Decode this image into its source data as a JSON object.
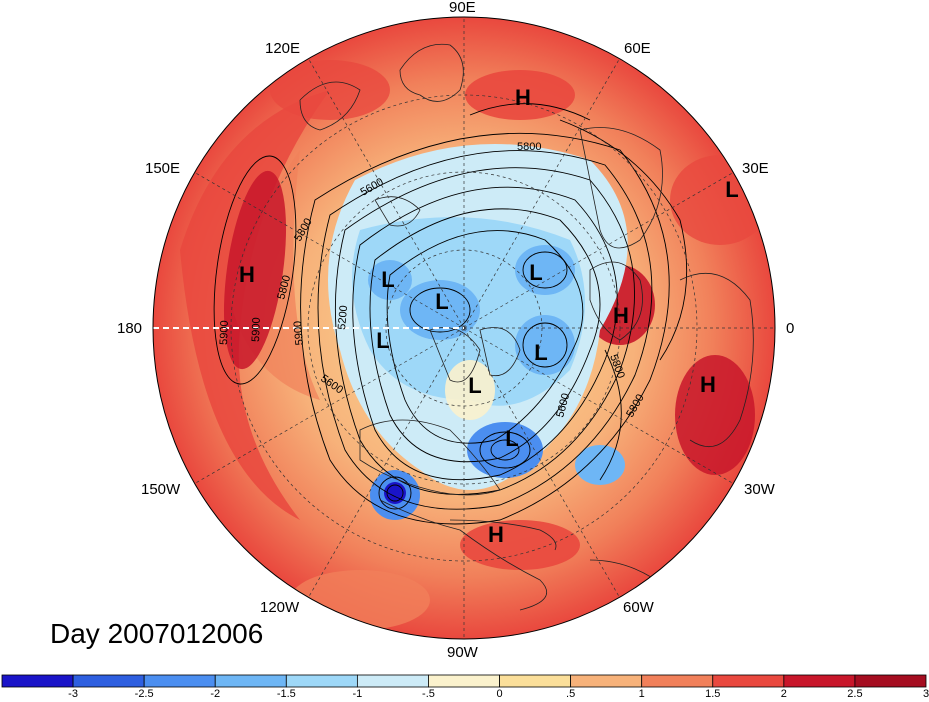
{
  "longitude_labels": [
    {
      "text": "90E"
    },
    {
      "text": "60E"
    },
    {
      "text": "30E"
    },
    {
      "text": "0"
    },
    {
      "text": "30W"
    },
    {
      "text": "60W"
    },
    {
      "text": "90W"
    },
    {
      "text": "120W"
    },
    {
      "text": "150W"
    },
    {
      "text": "180"
    },
    {
      "text": "150E"
    },
    {
      "text": "120E"
    }
  ],
  "day_label": "Day 2007012006",
  "contour_labels": [
    "5800",
    "5600",
    "5800",
    "5800",
    "5900",
    "5900",
    "5900",
    "5600",
    "5200",
    "5600",
    "5800",
    "5800"
  ],
  "systems": [
    "H",
    "H",
    "L",
    "L",
    "L",
    "L",
    "L",
    "L",
    "L",
    "H",
    "H",
    "H",
    "L"
  ],
  "colorbar": {
    "colors": [
      "#1a14c8",
      "#2e5fe0",
      "#4b8ef0",
      "#6eb6f5",
      "#9ed8f8",
      "#cdebf7",
      "#fbf2cd",
      "#fbdf9a",
      "#f7b27a",
      "#f1805a",
      "#e9483e",
      "#c8162a",
      "#a50d20"
    ],
    "labels": [
      "-3",
      "-2.5",
      "-2",
      "-1.5",
      "-1",
      "-.5",
      "0",
      ".5",
      "1",
      "1.5",
      "2",
      "2.5",
      "3"
    ]
  }
}
